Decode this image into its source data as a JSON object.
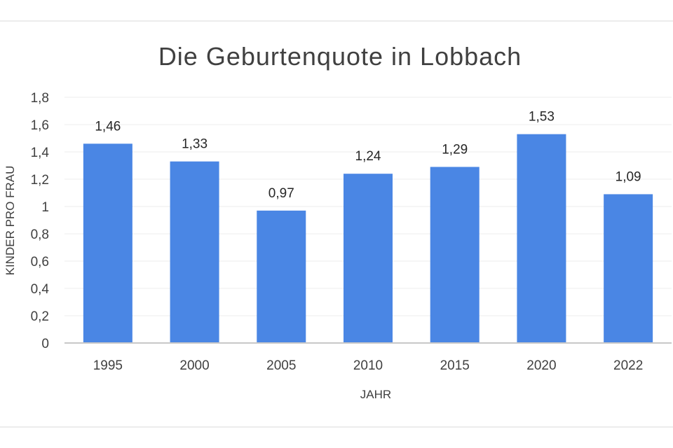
{
  "chart_data": {
    "type": "bar",
    "title": "Die Geburtenquote in Lobbach",
    "xlabel": "JAHR",
    "ylabel": "KINDER PRO FRAU",
    "categories": [
      "1995",
      "2000",
      "2005",
      "2010",
      "2015",
      "2020",
      "2022"
    ],
    "values": [
      1.46,
      1.33,
      0.97,
      1.24,
      1.29,
      1.53,
      1.09
    ],
    "value_labels": [
      "1,46",
      "1,33",
      "0,97",
      "1,24",
      "1,29",
      "1,53",
      "1,09"
    ],
    "y_ticks": [
      0,
      0.2,
      0.4,
      0.6,
      0.8,
      1,
      1.2,
      1.4,
      1.6,
      1.8
    ],
    "y_tick_labels": [
      "0",
      "0,2",
      "0,4",
      "0,6",
      "0,8",
      "1",
      "1,2",
      "1,4",
      "1,6",
      "1,8"
    ],
    "ylim": [
      0,
      1.8
    ],
    "grid": true,
    "legend": "none",
    "bar_color": "#4a86e4"
  }
}
